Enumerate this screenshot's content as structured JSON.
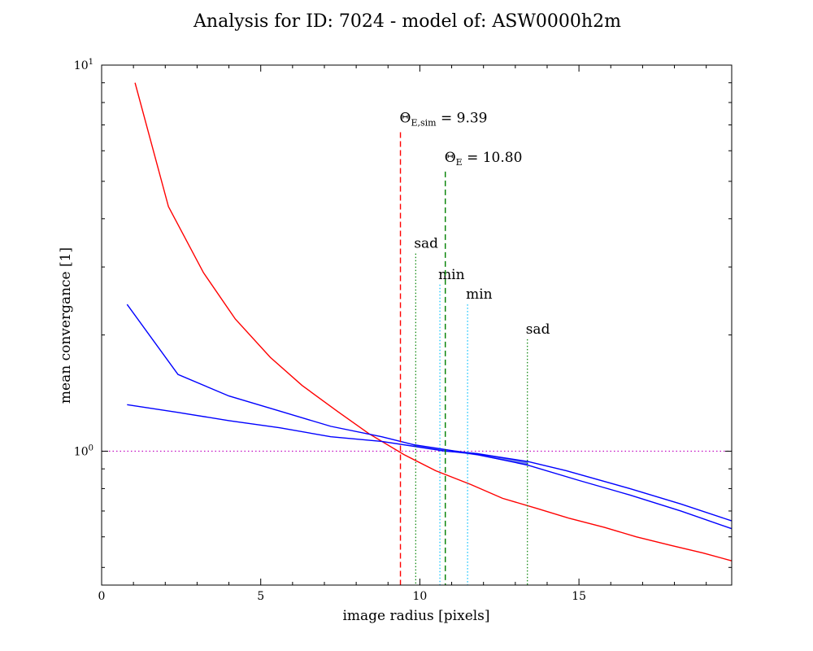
{
  "chart_data": {
    "type": "line",
    "title": "Analysis for ID: 7024 - model of: ASW0000h2m",
    "xlabel": "image radius [pixels]",
    "ylabel": "mean convergance [1]",
    "xlim": [
      0,
      19.8
    ],
    "ylim": [
      0.45,
      10
    ],
    "yscale": "log",
    "grid": false,
    "x_ticks": [
      {
        "value": 0,
        "label": "0"
      },
      {
        "value": 5,
        "label": "5"
      },
      {
        "value": 10,
        "label": "10"
      },
      {
        "value": 15,
        "label": "15"
      }
    ],
    "y_major_ticks": [
      {
        "value": 1,
        "base": "10",
        "exp": "0"
      },
      {
        "value": 10,
        "base": "10",
        "exp": "1"
      }
    ],
    "y_minor_ticks": [
      0.5,
      0.6,
      0.7,
      0.8,
      0.9,
      2,
      3,
      4,
      5,
      6,
      7,
      8,
      9
    ],
    "series": [
      {
        "color": "#ff0000",
        "x": [
          1.05,
          2.1,
          3.2,
          4.2,
          5.3,
          6.3,
          7.4,
          8.4,
          9.5,
          10.5,
          11.6,
          12.6,
          13.7,
          14.7,
          15.8,
          16.8,
          17.9,
          18.9,
          19.8
        ],
        "y": [
          9.0,
          4.3,
          2.9,
          2.2,
          1.75,
          1.48,
          1.27,
          1.11,
          0.98,
          0.89,
          0.82,
          0.755,
          0.71,
          0.67,
          0.635,
          0.6,
          0.57,
          0.545,
          0.52
        ]
      },
      {
        "color": "#0000ff",
        "x": [
          0.8,
          2.4,
          4.0,
          5.6,
          7.2,
          8.8,
          9.8,
          10.8,
          11.8,
          13.4,
          15.0,
          16.6,
          18.2,
          19.8
        ],
        "y": [
          2.4,
          1.58,
          1.39,
          1.27,
          1.16,
          1.09,
          1.04,
          1.01,
          0.98,
          0.92,
          0.84,
          0.77,
          0.7,
          0.63
        ]
      },
      {
        "color": "#0000ff",
        "x": [
          0.8,
          2.4,
          4.0,
          5.6,
          7.2,
          8.8,
          9.8,
          10.8,
          11.8,
          13.4,
          14.6,
          16.6,
          18.2,
          19.8
        ],
        "y": [
          1.32,
          1.26,
          1.2,
          1.15,
          1.09,
          1.06,
          1.03,
          1.0,
          0.985,
          0.94,
          0.89,
          0.8,
          0.73,
          0.66
        ]
      }
    ],
    "fill_between": {
      "x": [
        9.8,
        10.8,
        11.8,
        13.4
      ],
      "y_low": [
        1.03,
        1.0,
        0.975,
        0.92
      ],
      "y_high": [
        1.04,
        1.01,
        0.99,
        0.94
      ],
      "color": "#3b50e6"
    },
    "hline": {
      "y": 1.0,
      "color": "#bf00bf",
      "style": "dotted"
    },
    "theta_lines": [
      {
        "x": 9.39,
        "label_main": "Θ",
        "label_sub": "E,sim",
        "label_value": " = 9.39",
        "color": "#ff0000",
        "y_top": 6.7
      },
      {
        "x": 10.8,
        "label_main": "Θ",
        "label_sub": "E",
        "label_value": " = 10.80",
        "color": "#008000",
        "y_top": 5.3
      }
    ],
    "image_lines": [
      {
        "x": 9.87,
        "label": "sad",
        "color": "#008000",
        "y_top": 3.25
      },
      {
        "x": 10.63,
        "label": "min",
        "color": "#00bfff",
        "y_top": 2.7
      },
      {
        "x": 11.5,
        "label": "min",
        "color": "#00bfff",
        "y_top": 2.4
      },
      {
        "x": 13.38,
        "label": "sad",
        "color": "#008000",
        "y_top": 1.95
      }
    ]
  }
}
